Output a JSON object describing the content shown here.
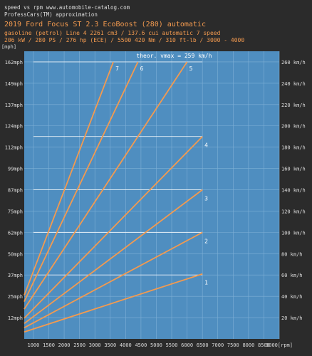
{
  "header": {
    "line1": "speed vs rpm www.automobile-catalog.com",
    "line2": "ProfessCars(TM) approximation",
    "title": "2019 Ford Focus ST 2.3 EcoBoost (280) automatic",
    "specs1": "gasoline (petrol) Line 4 2261 cm3 / 137.6 cui automatic 7 speed",
    "specs2": "206 kW / 280 PS / 276 hp  (ECE) / 5500 420 Nm / 310 ft-lb / 3000 - 4000"
  },
  "colors": {
    "background": "#2b2b2b",
    "plot_area": "#4f8ec0",
    "grid": "#7fb0d6",
    "reference_lines": "#ffffff",
    "gear_lines": "#f39a4f",
    "text_light": "#dcdcdc",
    "text_orange": "#f39a4f"
  },
  "chart_data": {
    "type": "line",
    "title": "2019 Ford Focus ST 2.3 EcoBoost (280) automatic",
    "xlabel": "[rpm]",
    "ylabel_left": "[mph]",
    "ylabel_right": "[km/h]",
    "xlim": [
      700,
      9000
    ],
    "ylim": [
      0,
      270
    ],
    "x_ticks": [
      1000,
      1500,
      2000,
      2500,
      3000,
      3500,
      4000,
      4500,
      5000,
      5500,
      6000,
      6500,
      7000,
      7500,
      8000,
      8500,
      9000
    ],
    "x_tick_labels": [
      "1000",
      "1500",
      "2000",
      "2500",
      "3000",
      "3500",
      "4000",
      "4500",
      "5000",
      "5500",
      "6000",
      "6500",
      "7000",
      "7500",
      "8000",
      "8500",
      "9000[rpm]"
    ],
    "left_ticks_kmh": [
      20,
      40,
      60,
      80,
      100,
      120,
      140,
      160,
      180,
      200,
      220,
      240,
      260
    ],
    "left_tick_labels": [
      "12mph",
      "25mph",
      "37mph",
      "50mph",
      "62mph",
      "75mph",
      "87mph",
      "99mph",
      "112mph",
      "124mph",
      "137mph",
      "149mph",
      "162mph"
    ],
    "right_ticks_kmh": [
      20,
      40,
      60,
      80,
      100,
      120,
      140,
      160,
      180,
      200,
      220,
      240,
      260
    ],
    "right_tick_labels": [
      "20 km/h",
      "40 km/h",
      "60 km/h",
      "80 km/h",
      "100 km/h",
      "120 km/h",
      "140 km/h",
      "160 km/h",
      "180 km/h",
      "200 km/h",
      "220 km/h",
      "240 km/h",
      "260 km/h"
    ],
    "reference_speeds_kmh": [
      60,
      100,
      140,
      190,
      260
    ],
    "annotation": "theor. vmax = 259 km/h",
    "series": [
      {
        "name": "1",
        "x": [
          700,
          6500
        ],
        "y": [
          6.5,
          61
        ]
      },
      {
        "name": "2",
        "x": [
          700,
          6500
        ],
        "y": [
          10.5,
          100
        ]
      },
      {
        "name": "3",
        "x": [
          700,
          6500
        ],
        "y": [
          14.5,
          140
        ]
      },
      {
        "name": "4",
        "x": [
          700,
          6500
        ],
        "y": [
          19.5,
          190
        ]
      },
      {
        "name": "5",
        "x": [
          700,
          6000
        ],
        "y": [
          28,
          260
        ]
      },
      {
        "name": "6",
        "x": [
          700,
          4400
        ],
        "y": [
          35,
          260
        ]
      },
      {
        "name": "7",
        "x": [
          700,
          3600
        ],
        "y": [
          41,
          260
        ]
      }
    ]
  }
}
